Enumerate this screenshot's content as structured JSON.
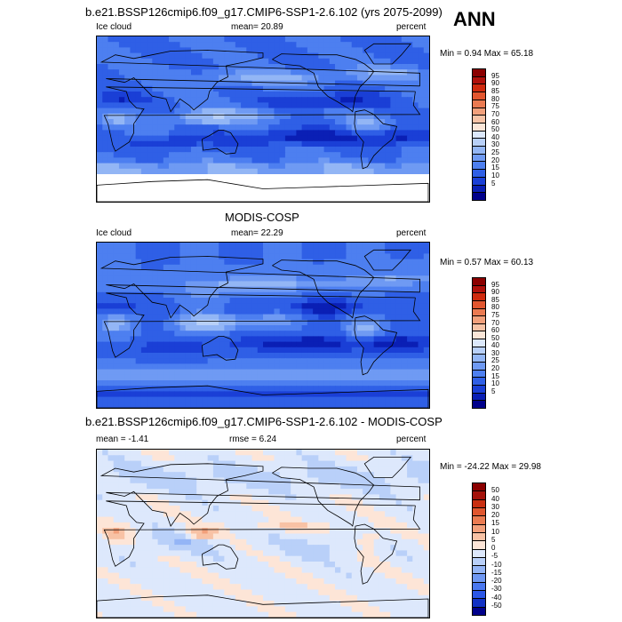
{
  "annual_label": "ANN",
  "colors": {
    "ice_levels": [
      "#00008b",
      "#0a1fb5",
      "#1a3fd6",
      "#2f5fe6",
      "#4d7ff0",
      "#6f9af3",
      "#93b6f5",
      "#b8d0f8",
      "#dce8fb",
      "#fbe6d8",
      "#f6c3a6",
      "#f1a07b",
      "#ea7a51",
      "#e3562f",
      "#d02a0e",
      "#b0100b",
      "#8b0000"
    ],
    "diff_levels": [
      "#00008b",
      "#1131c4",
      "#2a56e6",
      "#4a78f0",
      "#6f98f3",
      "#94b5f6",
      "#b9d0f9",
      "#dde8fc",
      "#fde5d7",
      "#f8c2a5",
      "#f2a07b",
      "#ea7b51",
      "#e0562e",
      "#c92f11",
      "#a4120b",
      "#8b0000"
    ]
  },
  "panels": [
    {
      "id": "model",
      "title": "b.e21.BSSP126cmip6.f09_g17.CMIP6-SSP1-2.6.102 (yrs 2075-2099)",
      "left_label": "Ice cloud",
      "center_label": "mean=  20.89",
      "right_label": "percent",
      "minmax": "Min =   0.94 Max =  65.18",
      "legend_labels": [
        "95",
        "90",
        "85",
        "80",
        "75",
        "70",
        "60",
        "50",
        "40",
        "30",
        "25",
        "20",
        "15",
        "10",
        "5"
      ]
    },
    {
      "id": "obs",
      "title": "MODIS-COSP",
      "left_label": "Ice cloud",
      "center_label": "mean=  22.29",
      "right_label": "percent",
      "minmax": "Min =   0.57 Max =  60.13",
      "legend_labels": [
        "95",
        "90",
        "85",
        "80",
        "75",
        "70",
        "60",
        "50",
        "40",
        "30",
        "25",
        "20",
        "15",
        "10",
        "5"
      ]
    },
    {
      "id": "diff",
      "title": "b.e21.BSSP126cmip6.f09_g17.CMIP6-SSP1-2.6.102 - MODIS-COSP",
      "left_label": "mean =   -1.41",
      "center_label": "rmse =   6.24",
      "right_label": "percent",
      "minmax": "Min = -24.22 Max =  29.98",
      "legend_labels": [
        "50",
        "40",
        "30",
        "20",
        "15",
        "10",
        "5",
        "0",
        "-5",
        "-10",
        "-15",
        "-20",
        "-30",
        "-40",
        "-50"
      ]
    }
  ]
}
